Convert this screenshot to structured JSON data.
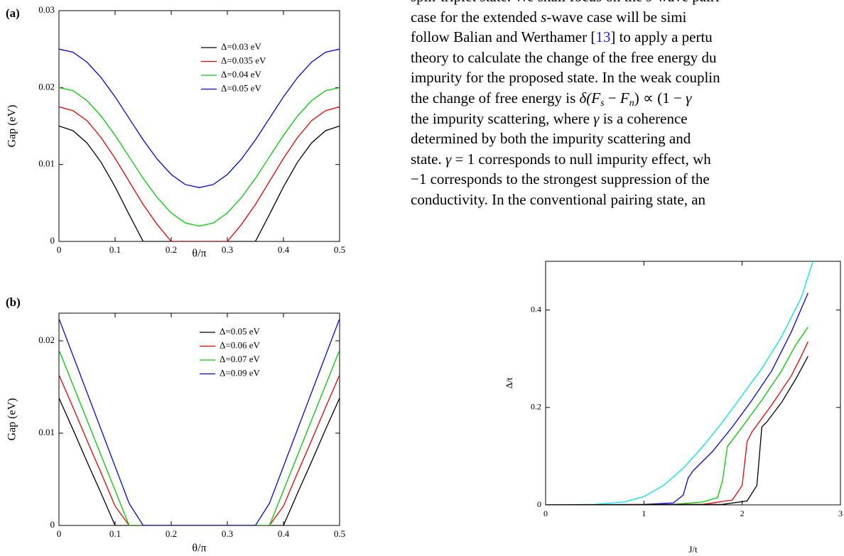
{
  "chart_data": [
    {
      "type": "line",
      "panel_label": "(a)",
      "x_label": "θ/π",
      "y_label": "Gap (eV)",
      "x": [
        0,
        0.025,
        0.05,
        0.075,
        0.1,
        0.125,
        0.15,
        0.175,
        0.2,
        0.225,
        0.25,
        0.275,
        0.3,
        0.325,
        0.35,
        0.375,
        0.4,
        0.425,
        0.45,
        0.475,
        0.5
      ],
      "xlim": [
        0,
        0.5
      ],
      "xticks": [
        0,
        0.1,
        0.2,
        0.3,
        0.4,
        0.5
      ],
      "ylim": [
        0,
        0.03
      ],
      "yticks": [
        0,
        0.01,
        0.02,
        0.03
      ],
      "series": [
        {
          "name": "Δ=0.03 eV",
          "color": "#000000",
          "values": [
            0.015,
            0.0144,
            0.0128,
            0.0103,
            0.0071,
            0.0035,
            0,
            0,
            0,
            0,
            0,
            0,
            0,
            0,
            0,
            0.0035,
            0.0071,
            0.0103,
            0.0128,
            0.0144,
            0.015
          ]
        },
        {
          "name": "Δ=0.035 eV",
          "color": "#ee0000",
          "values": [
            0.0175,
            0.017,
            0.0157,
            0.0135,
            0.0108,
            0.0078,
            0.0048,
            0.0022,
            0,
            0,
            0,
            0,
            0,
            0.0022,
            0.0048,
            0.0078,
            0.0108,
            0.0135,
            0.0157,
            0.017,
            0.0175
          ]
        },
        {
          "name": "Δ=0.04 eV",
          "color": "#00cc00",
          "values": [
            0.02,
            0.0196,
            0.0183,
            0.0163,
            0.0138,
            0.011,
            0.0082,
            0.0057,
            0.0037,
            0.0024,
            0.002,
            0.0024,
            0.0037,
            0.0057,
            0.0082,
            0.011,
            0.0138,
            0.0163,
            0.0183,
            0.0196,
            0.02
          ]
        },
        {
          "name": "Δ=0.05 eV",
          "color": "#0000ee",
          "values": [
            0.025,
            0.0246,
            0.0233,
            0.0213,
            0.0188,
            0.016,
            0.0132,
            0.0107,
            0.0087,
            0.0074,
            0.007,
            0.0074,
            0.0087,
            0.0107,
            0.0132,
            0.016,
            0.0188,
            0.0213,
            0.0233,
            0.0246,
            0.025
          ]
        }
      ]
    },
    {
      "type": "line",
      "panel_label": "(b)",
      "x_label": "θ/π",
      "y_label": "Gap (eV)",
      "x": [
        0,
        0.025,
        0.05,
        0.075,
        0.1,
        0.125,
        0.15,
        0.175,
        0.2,
        0.225,
        0.25,
        0.275,
        0.3,
        0.325,
        0.35,
        0.375,
        0.4,
        0.425,
        0.45,
        0.475,
        0.5
      ],
      "xlim": [
        0,
        0.5
      ],
      "xticks": [
        0,
        0.1,
        0.2,
        0.3,
        0.4,
        0.5
      ],
      "ylim": [
        0,
        0.023
      ],
      "yticks": [
        0,
        0.01,
        0.02
      ],
      "series": [
        {
          "name": "Δ=0.05 eV",
          "color": "#000000",
          "values": [
            0.0138,
            0.0104,
            0.0069,
            0.0035,
            0,
            0,
            0,
            0,
            0,
            0,
            0,
            0,
            0,
            0,
            0,
            0,
            0,
            0.0035,
            0.0069,
            0.0104,
            0.0138
          ]
        },
        {
          "name": "Δ=0.06 eV",
          "color": "#ee0000",
          "values": [
            0.0163,
            0.0128,
            0.0092,
            0.0057,
            0.0021,
            0,
            0,
            0,
            0,
            0,
            0,
            0,
            0,
            0,
            0,
            0,
            0.0021,
            0.0057,
            0.0092,
            0.0128,
            0.0163
          ]
        },
        {
          "name": "Δ=0.07 eV",
          "color": "#00cc00",
          "values": [
            0.019,
            0.0152,
            0.0114,
            0.0076,
            0.0038,
            0,
            0,
            0,
            0,
            0,
            0,
            0,
            0,
            0,
            0,
            0,
            0.0038,
            0.0076,
            0.0114,
            0.0152,
            0.019
          ]
        },
        {
          "name": "Δ=0.09 eV",
          "color": "#0000ee",
          "values": [
            0.0224,
            0.0184,
            0.0144,
            0.0104,
            0.0064,
            0.0024,
            0,
            0,
            0,
            0,
            0,
            0,
            0,
            0,
            0,
            0.0024,
            0.0064,
            0.0104,
            0.0144,
            0.0184,
            0.0224
          ]
        }
      ]
    },
    {
      "type": "line",
      "x_label": "J/t",
      "y_label": "Δ/t",
      "xlim": [
        0,
        3
      ],
      "xticks": [
        0,
        1,
        2,
        3
      ],
      "ylim": [
        0,
        0.5
      ],
      "yticks": [
        0,
        0.2,
        0.4
      ],
      "series": [
        {
          "color": "#00e5e5",
          "x": [
            0,
            0.5,
            0.8,
            1,
            1.2,
            1.4,
            1.6,
            1.8,
            2,
            2.2,
            2.4,
            2.6,
            2.72
          ],
          "values": [
            0,
            0.001,
            0.006,
            0.017,
            0.04,
            0.075,
            0.12,
            0.17,
            0.225,
            0.28,
            0.345,
            0.425,
            0.5
          ]
        },
        {
          "color": "#0000ee",
          "x": [
            0,
            1,
            1.3,
            1.4,
            1.45,
            1.5,
            1.7,
            1.9,
            2.1,
            2.3,
            2.5,
            2.67
          ],
          "values": [
            0,
            0.001,
            0.004,
            0.02,
            0.055,
            0.07,
            0.11,
            0.16,
            0.215,
            0.275,
            0.355,
            0.435
          ]
        },
        {
          "color": "#00cc00",
          "x": [
            0,
            1.3,
            1.6,
            1.75,
            1.8,
            1.85,
            2,
            2.2,
            2.4,
            2.55,
            2.67
          ],
          "values": [
            0,
            0.001,
            0.006,
            0.015,
            0.05,
            0.12,
            0.16,
            0.215,
            0.275,
            0.33,
            0.365
          ]
        },
        {
          "color": "#ee0000",
          "x": [
            0,
            1.6,
            1.9,
            2,
            2.05,
            2.1,
            2.3,
            2.5,
            2.6,
            2.67
          ],
          "values": [
            0,
            0.001,
            0.01,
            0.04,
            0.13,
            0.15,
            0.205,
            0.265,
            0.305,
            0.335
          ]
        },
        {
          "color": "#000000",
          "x": [
            0,
            1.8,
            2.05,
            2.15,
            2.2,
            2.25,
            2.4,
            2.55,
            2.67
          ],
          "values": [
            0,
            0.001,
            0.008,
            0.04,
            0.16,
            0.17,
            0.21,
            0.26,
            0.305
          ]
        }
      ]
    }
  ],
  "text": {
    "lines": [
      [
        "spin-triplet state. We shall focus on the ",
        "s",
        "-wave pairi"
      ],
      [
        "case for the extended ",
        "s",
        "-wave case will be simi"
      ],
      [
        "follow Balian and Werthamer [",
        "13",
        "] to apply a pertu"
      ],
      [
        "theory to calculate the change of the free energy du"
      ],
      [
        "impurity for the proposed state. In the weak couplin"
      ],
      [
        "the change of free energy is ",
        "δ(F",
        "s",
        " − ",
        "F",
        "n",
        ") ∝ (1 − ",
        "γ"
      ],
      [
        "the impurity scattering, where ",
        "γ",
        " is a coherence"
      ],
      [
        "determined by both the impurity scattering and"
      ],
      [
        "state. ",
        "γ",
        " = 1 corresponds to null impurity effect, wh"
      ],
      [
        "−1 corresponds to the strongest suppression of the"
      ],
      [
        "conductivity. In the conventional pairing state, an"
      ]
    ]
  }
}
